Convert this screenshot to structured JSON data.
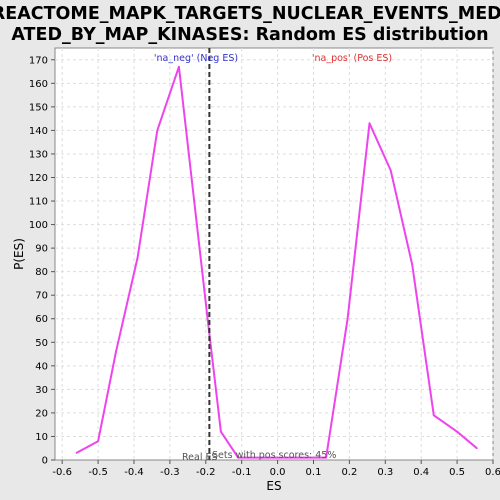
{
  "chart_data": {
    "type": "line",
    "title_line1": "REACTOME_MAPK_TARGETS_NUCLEAR_EVENTS_MEDI",
    "title_line2": "ATED_BY_MAP_KINASES: Random ES distribution",
    "xlabel": "ES",
    "ylabel": "P(ES)",
    "xlim": [
      -0.62,
      0.6
    ],
    "ylim": [
      0,
      175
    ],
    "x_ticks": [
      -0.6,
      -0.5,
      -0.4,
      -0.3,
      -0.2,
      -0.1,
      0.0,
      0.1,
      0.2,
      0.3,
      0.4,
      0.5,
      0.6
    ],
    "x_tick_labels": [
      "-0.6",
      "-0.5",
      "-0.4",
      "-0.3",
      "-0.2",
      "-0.1",
      "0.0",
      "0.1",
      "0.2",
      "0.3",
      "0.4",
      "0.5",
      "0.6"
    ],
    "y_ticks": [
      0,
      10,
      20,
      30,
      40,
      50,
      60,
      70,
      80,
      90,
      100,
      110,
      120,
      130,
      140,
      150,
      160,
      170
    ],
    "grid": true,
    "series": [
      {
        "color": "#ee44ee",
        "x": [
          -0.56,
          -0.5,
          -0.45,
          -0.39,
          -0.335,
          -0.275,
          -0.195,
          -0.158,
          -0.11,
          0.135,
          0.195,
          0.256,
          0.315,
          0.375,
          0.435,
          0.5,
          0.555
        ],
        "y": [
          3,
          8,
          46,
          86,
          140,
          167,
          60,
          12,
          1,
          1,
          60,
          143,
          123,
          83,
          19,
          12,
          5
        ]
      }
    ],
    "real_es": -0.19,
    "annotations": {
      "neg_label": "'na_neg' (Neg ES)",
      "neg_color": "#3333cc",
      "pos_label": "'na_pos' (Pos ES)",
      "pos_color": "#dd3333",
      "real_es_label": "Real ES",
      "pos_scores_label": "Sets with pos scores: 45%"
    }
  }
}
